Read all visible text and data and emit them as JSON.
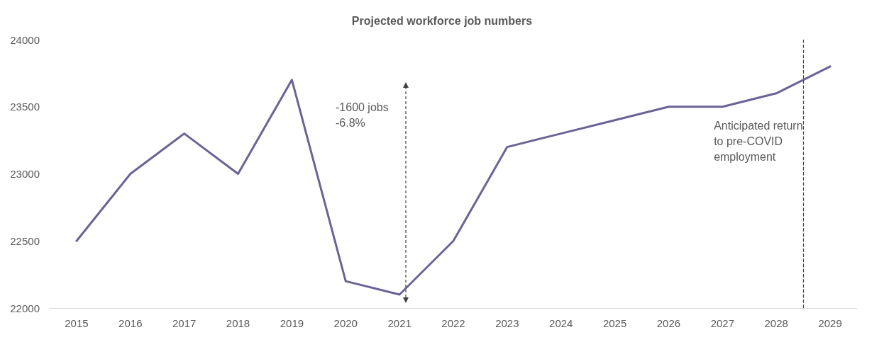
{
  "chart_data": {
    "type": "line",
    "title": "Projected workforce job numbers",
    "x": [
      2015,
      2016,
      2017,
      2018,
      2019,
      2020,
      2021,
      2022,
      2023,
      2024,
      2025,
      2026,
      2027,
      2028,
      2029
    ],
    "series": [
      {
        "color": "#6b6296",
        "values": [
          22500,
          23000,
          23300,
          23000,
          23700,
          22200,
          22100,
          22500,
          23200,
          23300,
          23400,
          23500,
          23500,
          23600,
          23800
        ]
      }
    ],
    "xlim": [
      2014.5,
      2029.5
    ],
    "xticks": [
      2015,
      2016,
      2017,
      2018,
      2019,
      2020,
      2021,
      2022,
      2023,
      2024,
      2025,
      2026,
      2027,
      2028,
      2029
    ],
    "ylim": [
      22000,
      24000
    ],
    "yticks": [
      22000,
      22500,
      23000,
      23500,
      24000
    ],
    "grid": false,
    "marker": "none",
    "line_style": "solid",
    "annotations": [
      "-1600 jobs\n-6.8%"
    ],
    "ref_lines": [
      {
        "axis": "x",
        "value": 2028.5,
        "label": "Anticipated return to pre-COVID employment",
        "color": "#404040",
        "line_style": "dashed"
      }
    ]
  }
}
